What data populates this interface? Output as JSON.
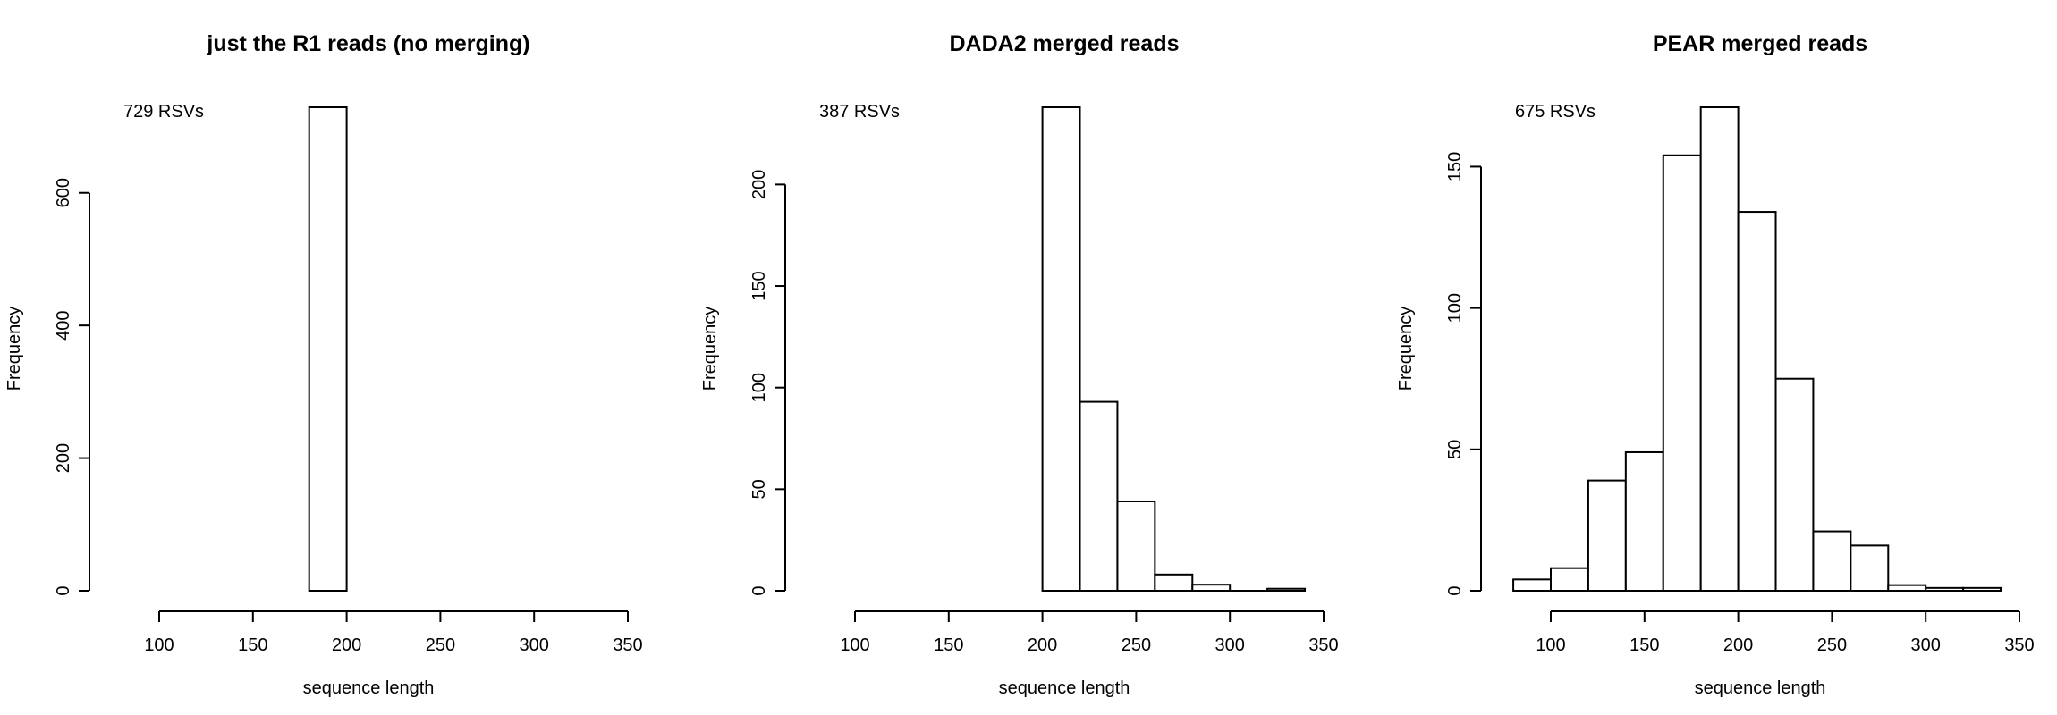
{
  "chart_data": [
    {
      "type": "bar",
      "title": "just the R1 reads (no merging)",
      "xlabel": "sequence length",
      "ylabel": "Frequency",
      "annotation": "729 RSVs",
      "xlim": [
        100,
        350
      ],
      "xticks": [
        "100",
        "150",
        "200",
        "250",
        "300",
        "350"
      ],
      "yticks": [
        "0",
        "200",
        "400",
        "600"
      ],
      "ylim": [
        0,
        729
      ],
      "bins": [
        {
          "start": 180,
          "end": 200,
          "count": 729
        }
      ]
    },
    {
      "type": "bar",
      "title": "DADA2 merged reads",
      "xlabel": "sequence length",
      "ylabel": "Frequency",
      "annotation": "387 RSVs",
      "xlim": [
        100,
        350
      ],
      "xticks": [
        "100",
        "150",
        "200",
        "250",
        "300",
        "350"
      ],
      "yticks": [
        "0",
        "50",
        "100",
        "150",
        "200"
      ],
      "ylim": [
        0,
        238
      ],
      "bins": [
        {
          "start": 200,
          "end": 220,
          "count": 238
        },
        {
          "start": 220,
          "end": 240,
          "count": 93
        },
        {
          "start": 240,
          "end": 260,
          "count": 44
        },
        {
          "start": 260,
          "end": 280,
          "count": 8
        },
        {
          "start": 280,
          "end": 300,
          "count": 3
        },
        {
          "start": 300,
          "end": 320,
          "count": 0
        },
        {
          "start": 320,
          "end": 340,
          "count": 1
        }
      ]
    },
    {
      "type": "bar",
      "title": "PEAR merged reads",
      "xlabel": "sequence length",
      "ylabel": "Frequency",
      "annotation": "675 RSVs",
      "xlim": [
        100,
        350
      ],
      "xticks": [
        "100",
        "150",
        "200",
        "250",
        "300",
        "350"
      ],
      "yticks": [
        "0",
        "50",
        "100",
        "150"
      ],
      "ylim": [
        0,
        171
      ],
      "bins": [
        {
          "start": 80,
          "end": 100,
          "count": 4
        },
        {
          "start": 100,
          "end": 120,
          "count": 8
        },
        {
          "start": 120,
          "end": 140,
          "count": 39
        },
        {
          "start": 140,
          "end": 160,
          "count": 49
        },
        {
          "start": 160,
          "end": 180,
          "count": 154
        },
        {
          "start": 180,
          "end": 200,
          "count": 171
        },
        {
          "start": 200,
          "end": 220,
          "count": 134
        },
        {
          "start": 220,
          "end": 240,
          "count": 75
        },
        {
          "start": 240,
          "end": 260,
          "count": 21
        },
        {
          "start": 260,
          "end": 280,
          "count": 16
        },
        {
          "start": 280,
          "end": 300,
          "count": 2
        },
        {
          "start": 300,
          "end": 320,
          "count": 1
        },
        {
          "start": 320,
          "end": 340,
          "count": 1
        }
      ]
    }
  ]
}
